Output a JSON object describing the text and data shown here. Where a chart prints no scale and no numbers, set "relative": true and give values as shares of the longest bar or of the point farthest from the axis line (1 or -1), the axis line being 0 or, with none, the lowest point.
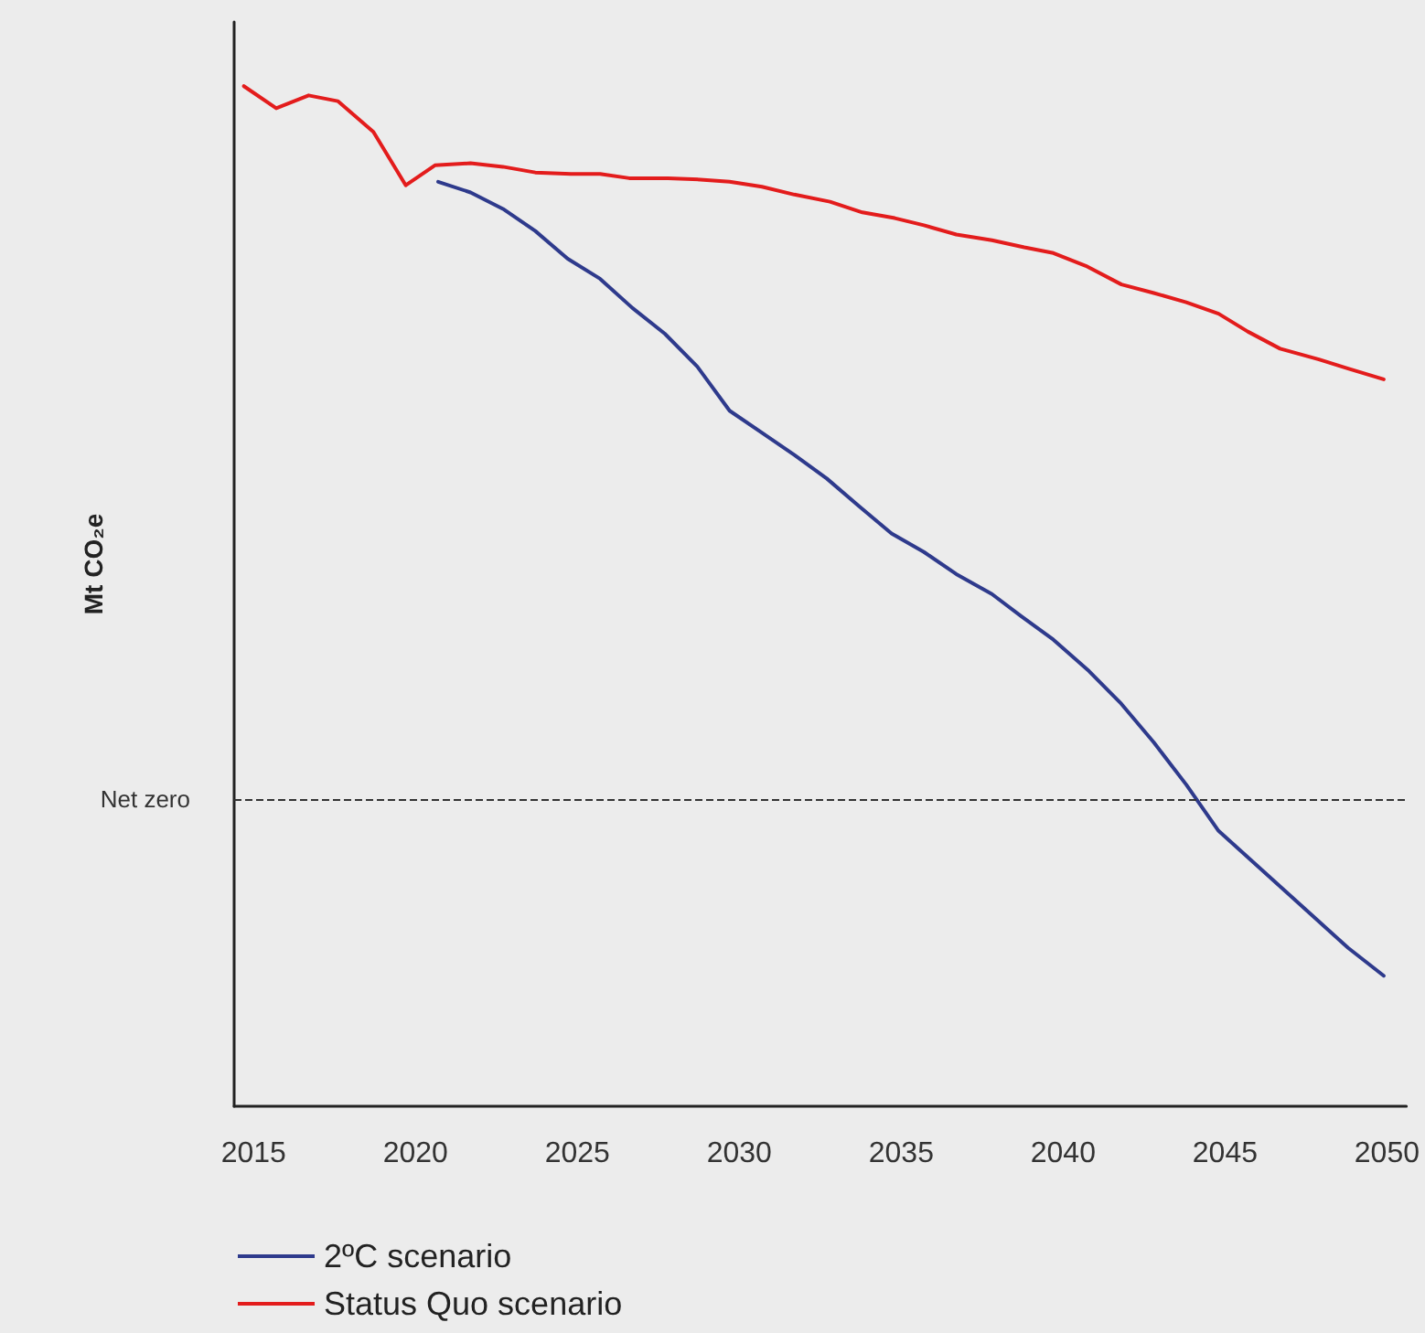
{
  "chart_data": {
    "type": "line",
    "relative": true,
    "ylabel": "Mt CO₂e",
    "xlim": [
      2014.4,
      2050.6
    ],
    "xticks": [
      2015,
      2020,
      2025,
      2030,
      2035,
      2040,
      2045,
      2050
    ],
    "grid": false,
    "legend": "bottom left",
    "marker": "none",
    "line_style": "solid",
    "ref_lines": [
      {
        "axis": "y",
        "value": 0,
        "label": "Net zero",
        "color": "#333333",
        "line_style": "dashed"
      }
    ],
    "series": [
      {
        "name": "2ºC scenario",
        "color": "#2e3a8c",
        "x": [
          2020.7,
          2021.7,
          2022.7,
          2023.7,
          2024.7,
          2025.7,
          2026.7,
          2027.7,
          2028.7,
          2029.7,
          2030.7,
          2031.7,
          2032.7,
          2033.7,
          2034.7,
          2035.7,
          2036.7,
          2037.8,
          2038.7,
          2039.7,
          2040.8,
          2041.8,
          2042.8,
          2043.8,
          2044.8,
          2045.8,
          2046.8,
          2047.8,
          2048.8,
          2049.9
        ],
        "values": [
          0.866,
          0.851,
          0.828,
          0.797,
          0.758,
          0.73,
          0.689,
          0.653,
          0.607,
          0.545,
          0.514,
          0.483,
          0.45,
          0.411,
          0.373,
          0.347,
          0.316,
          0.288,
          0.257,
          0.224,
          0.18,
          0.134,
          0.08,
          0.021,
          -0.044,
          -0.085,
          -0.126,
          -0.167,
          -0.208,
          -0.247
        ]
      },
      {
        "name": "Status Quo scenario",
        "color": "#e31c1c",
        "x": [
          2014.7,
          2015.7,
          2016.7,
          2017.6,
          2018.7,
          2019.7,
          2020.6,
          2021.7,
          2022.7,
          2023.7,
          2024.8,
          2025.7,
          2026.6,
          2027.8,
          2028.8,
          2029.7,
          2030.7,
          2031.7,
          2032.8,
          2033.8,
          2034.8,
          2035.7,
          2036.7,
          2037.8,
          2038.8,
          2039.7,
          2040.7,
          2041.8,
          2042.8,
          2043.8,
          2044.8,
          2045.7,
          2046.7,
          2047.9,
          2048.8,
          2049.9
        ],
        "values": [
          1.0,
          0.969,
          0.987,
          0.979,
          0.936,
          0.861,
          0.889,
          0.892,
          0.887,
          0.879,
          0.877,
          0.877,
          0.871,
          0.871,
          0.869,
          0.866,
          0.859,
          0.848,
          0.838,
          0.823,
          0.815,
          0.805,
          0.792,
          0.784,
          0.774,
          0.766,
          0.748,
          0.722,
          0.71,
          0.697,
          0.681,
          0.656,
          0.632,
          0.617,
          0.604,
          0.589
        ]
      }
    ]
  }
}
